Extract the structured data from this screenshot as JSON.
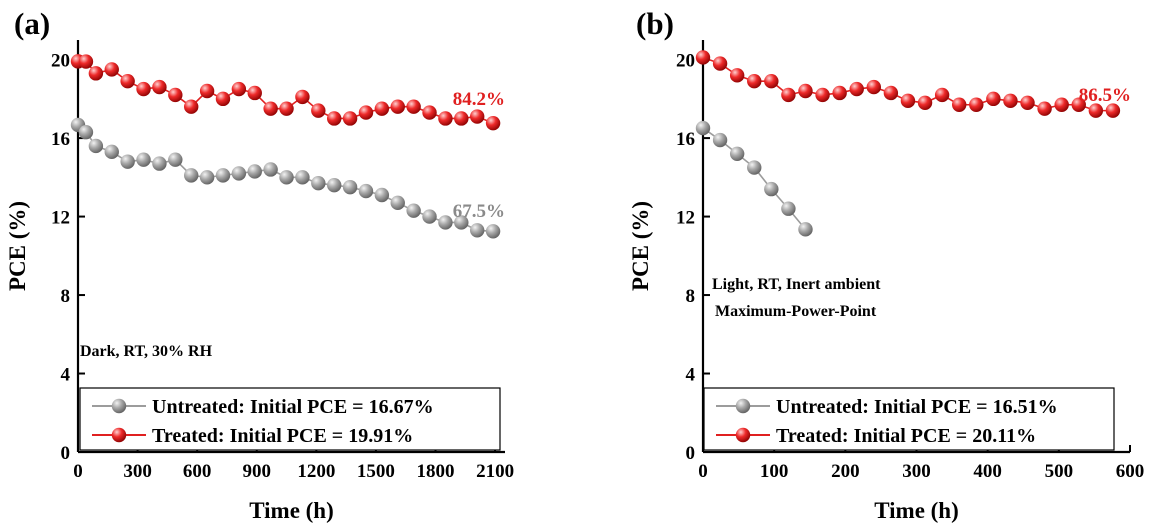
{
  "colors": {
    "untreated": "#9c9c9c",
    "treated": "#e02020",
    "untreated_label": "#8a8a8a",
    "treated_label": "#e02020"
  },
  "chart_data": [
    {
      "type": "line",
      "panel_label": "(a)",
      "xlabel": "Time (h)",
      "ylabel": "PCE (%)",
      "xlim": [
        0,
        2150
      ],
      "ylim": [
        0,
        21
      ],
      "xticks": [
        0,
        300,
        600,
        900,
        1200,
        1500,
        1800,
        2100
      ],
      "yticks": [
        0,
        4,
        8,
        12,
        16,
        20
      ],
      "annotation_lines": [
        "Dark, RT, 30% RH"
      ],
      "series": [
        {
          "name": "Untreated: Initial PCE = 16.67%",
          "color": "#9c9c9c",
          "end_label": "67.5%",
          "x": [
            0,
            40,
            90,
            170,
            250,
            330,
            410,
            490,
            570,
            650,
            730,
            810,
            890,
            970,
            1050,
            1130,
            1210,
            1290,
            1370,
            1450,
            1530,
            1610,
            1690,
            1770,
            1850,
            1930,
            2010,
            2090
          ],
          "y": [
            16.67,
            16.3,
            15.6,
            15.3,
            14.8,
            14.9,
            14.7,
            14.9,
            14.1,
            14.0,
            14.1,
            14.2,
            14.3,
            14.4,
            14.0,
            14.0,
            13.7,
            13.6,
            13.5,
            13.3,
            13.1,
            12.7,
            12.3,
            12.0,
            11.7,
            11.7,
            11.3,
            11.25
          ]
        },
        {
          "name": "Treated: Initial PCE = 19.91%",
          "color": "#e02020",
          "end_label": "84.2%",
          "x": [
            0,
            40,
            90,
            170,
            250,
            330,
            410,
            490,
            570,
            650,
            730,
            810,
            890,
            970,
            1050,
            1130,
            1210,
            1290,
            1370,
            1450,
            1530,
            1610,
            1690,
            1770,
            1850,
            1930,
            2010,
            2090
          ],
          "y": [
            19.91,
            19.9,
            19.3,
            19.5,
            18.9,
            18.5,
            18.6,
            18.2,
            17.6,
            18.4,
            18.0,
            18.5,
            18.3,
            17.5,
            17.5,
            18.1,
            17.4,
            17.0,
            17.0,
            17.3,
            17.5,
            17.6,
            17.6,
            17.3,
            17.0,
            17.0,
            17.1,
            16.76
          ]
        }
      ]
    },
    {
      "type": "line",
      "panel_label": "(b)",
      "xlabel": "Time (h)",
      "ylabel": "PCE (%)",
      "xlim": [
        0,
        600
      ],
      "ylim": [
        0,
        21
      ],
      "xticks": [
        0,
        100,
        200,
        300,
        400,
        500,
        600
      ],
      "yticks": [
        0,
        4,
        8,
        12,
        16,
        20
      ],
      "annotation_lines": [
        "Light, RT, Inert ambient",
        "Maximum-Power-Point"
      ],
      "series": [
        {
          "name": "Untreated: Initial PCE = 16.51%",
          "color": "#9c9c9c",
          "end_label": "",
          "x": [
            0,
            24,
            48,
            72,
            96,
            120,
            144
          ],
          "y": [
            16.51,
            15.9,
            15.2,
            14.5,
            13.4,
            12.4,
            11.35
          ]
        },
        {
          "name": "Treated: Initial PCE = 20.11%",
          "color": "#e02020",
          "end_label": "86.5%",
          "x": [
            0,
            24,
            48,
            72,
            96,
            120,
            144,
            168,
            192,
            216,
            240,
            264,
            288,
            312,
            336,
            360,
            384,
            408,
            432,
            456,
            480,
            504,
            528,
            552,
            576
          ],
          "y": [
            20.11,
            19.8,
            19.2,
            18.9,
            18.9,
            18.2,
            18.4,
            18.2,
            18.3,
            18.5,
            18.6,
            18.3,
            17.9,
            17.8,
            18.2,
            17.7,
            17.7,
            18.0,
            17.9,
            17.8,
            17.5,
            17.7,
            17.7,
            17.4,
            17.4
          ]
        }
      ]
    }
  ]
}
